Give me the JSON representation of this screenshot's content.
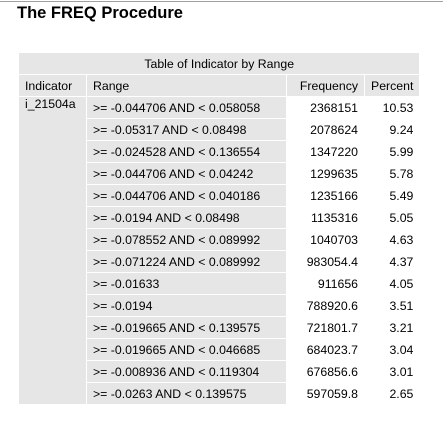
{
  "procedure_title": "The FREQ Procedure",
  "table": {
    "caption": "Table of Indicator by Range",
    "headers": {
      "indicator": "Indicator",
      "range": "Range",
      "frequency": "Frequency",
      "percent": "Percent"
    },
    "indicator_value": "i_21504a",
    "rows": [
      {
        "range": ">= -0.044706 AND < 0.058058",
        "frequency": "2368151",
        "percent": "10.53"
      },
      {
        "range": ">= -0.05317 AND < 0.08498",
        "frequency": "2078624",
        "percent": "9.24"
      },
      {
        "range": ">= -0.024528 AND < 0.136554",
        "frequency": "1347220",
        "percent": "5.99"
      },
      {
        "range": ">= -0.044706 AND < 0.04242",
        "frequency": "1299635",
        "percent": "5.78"
      },
      {
        "range": ">= -0.044706 AND < 0.040186",
        "frequency": "1235166",
        "percent": "5.49"
      },
      {
        "range": ">= -0.0194 AND < 0.08498",
        "frequency": "1135316",
        "percent": "5.05"
      },
      {
        "range": ">= -0.078552 AND < 0.089992",
        "frequency": "1040703",
        "percent": "4.63"
      },
      {
        "range": ">= -0.071224 AND < 0.089992",
        "frequency": "983054.4",
        "percent": "4.37"
      },
      {
        "range": ">= -0.01633",
        "frequency": "911656",
        "percent": "4.05"
      },
      {
        "range": ">= -0.0194",
        "frequency": "788920.6",
        "percent": "3.51"
      },
      {
        "range": ">= -0.019665 AND < 0.139575",
        "frequency": "721801.7",
        "percent": "3.21"
      },
      {
        "range": ">= -0.019665 AND < 0.046685",
        "frequency": "684023.7",
        "percent": "3.04"
      },
      {
        "range": ">= -0.008936 AND < 0.119304",
        "frequency": "676856.6",
        "percent": "3.01"
      },
      {
        "range": ">= -0.0263 AND < 0.139575",
        "frequency": "597059.8",
        "percent": "2.65"
      }
    ]
  }
}
